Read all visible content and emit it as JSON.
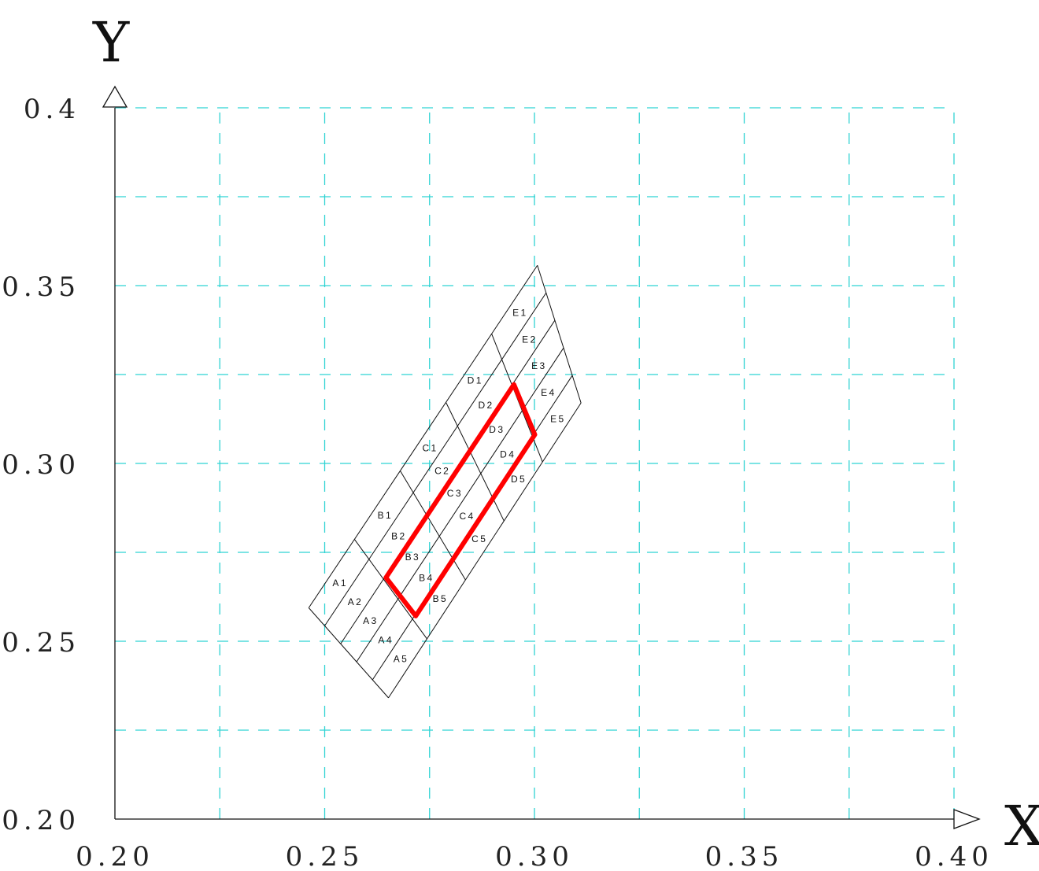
{
  "chart_data": {
    "type": "diagram-grid",
    "xlabel": "X",
    "ylabel": "Y",
    "xlim": [
      0.2,
      0.4
    ],
    "ylim": [
      0.2,
      0.4
    ],
    "x_ticks": [
      "0.20",
      "0.25",
      "0.30",
      "0.35",
      "0.40"
    ],
    "y_ticks": [
      "0.20",
      "0.25",
      "0.30",
      "0.35",
      "0.4"
    ],
    "grid": "dashed",
    "grid_color": "#2fd3d3",
    "mesh": {
      "rows": [
        "A",
        "B",
        "C",
        "D",
        "E"
      ],
      "cols": 5,
      "corners": {
        "a1_start": [
          0.2462,
          0.2594
        ],
        "e1_start": [
          0.3007,
          0.3557
        ],
        "a5_end": [
          0.2652,
          0.2341
        ],
        "e5_end": [
          0.3111,
          0.317
        ]
      },
      "cell_labels": [
        "A1",
        "A2",
        "A3",
        "A4",
        "A5",
        "B1",
        "B2",
        "B3",
        "B4",
        "B5",
        "C1",
        "C2",
        "C3",
        "C4",
        "C5",
        "D1",
        "D2",
        "D3",
        "D4",
        "D5",
        "E1",
        "E2",
        "E3",
        "E4",
        "E5"
      ]
    },
    "highlight": {
      "color": "#ff0000",
      "polygon": [
        [
          0.2951,
          0.3222
        ],
        [
          0.3001,
          0.3081
        ],
        [
          0.2717,
          0.2571
        ],
        [
          0.2646,
          0.2679
        ]
      ]
    }
  }
}
